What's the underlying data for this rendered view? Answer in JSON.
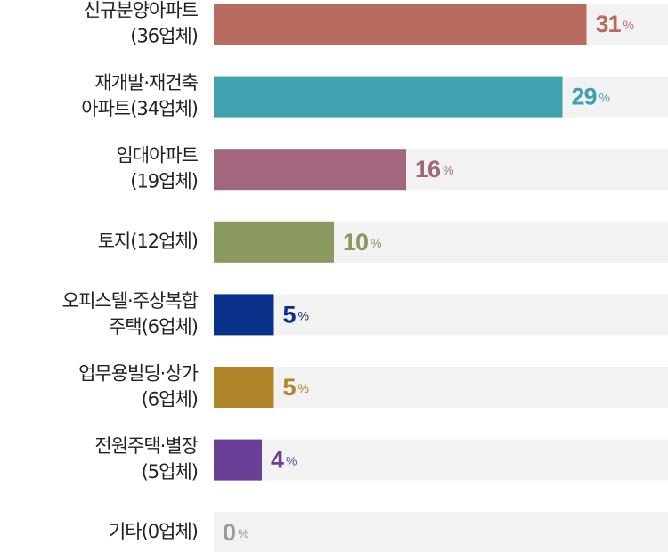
{
  "chart_data": {
    "type": "bar",
    "orientation": "horizontal",
    "categories": [
      [
        "신규분양아파트",
        "(36업체)"
      ],
      [
        "재개발·재건축",
        "아파트(34업체)"
      ],
      [
        "임대아파트",
        "(19업체)"
      ],
      [
        "토지(12업체)"
      ],
      [
        "오피스텔·주상복합",
        "주택(6업체)"
      ],
      [
        "업무용빌딩·상가",
        "(6업체)"
      ],
      [
        "전원주택·별장",
        "(5업체)"
      ],
      [
        "기타(0업체)"
      ]
    ],
    "values": [
      31,
      29,
      16,
      10,
      5,
      5,
      4,
      0
    ],
    "value_unit": "%",
    "colors": [
      "#b86b5e",
      "#41a1ae",
      "#a2677e",
      "#8a9960",
      "#0a318a",
      "#b08428",
      "#6b3f98",
      "#9a9a9a"
    ],
    "track_color": "#f2f2f2"
  }
}
